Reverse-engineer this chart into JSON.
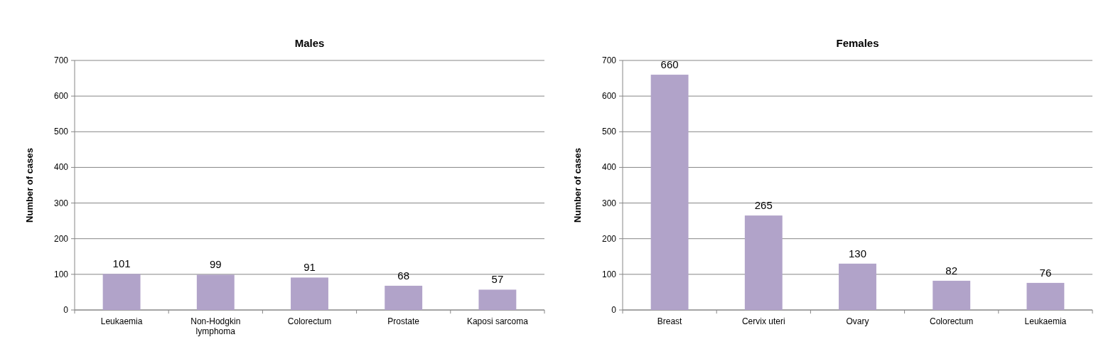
{
  "chart_data": [
    {
      "type": "bar",
      "title": "Males",
      "ylabel": "Number of cases",
      "categories": [
        "Leukaemia",
        "Non-Hodgkin lymphoma",
        "Colorectum",
        "Prostate",
        "Kaposi sarcoma"
      ],
      "values": [
        101,
        99,
        91,
        68,
        57
      ],
      "color": "#b1a3c9",
      "ylim": [
        0,
        700
      ],
      "yticks": [
        0,
        100,
        200,
        300,
        400,
        500,
        600,
        700
      ],
      "grid": "y",
      "data_labels": true
    },
    {
      "type": "bar",
      "title": "Females",
      "ylabel": "Number of cases",
      "categories": [
        "Breast",
        "Cervix uteri",
        "Ovary",
        "Colorectum",
        "Leukaemia"
      ],
      "values": [
        660,
        265,
        130,
        82,
        76
      ],
      "color": "#b1a3c9",
      "ylim": [
        0,
        700
      ],
      "yticks": [
        0,
        100,
        200,
        300,
        400,
        500,
        600,
        700
      ],
      "grid": "y",
      "data_labels": true
    }
  ]
}
